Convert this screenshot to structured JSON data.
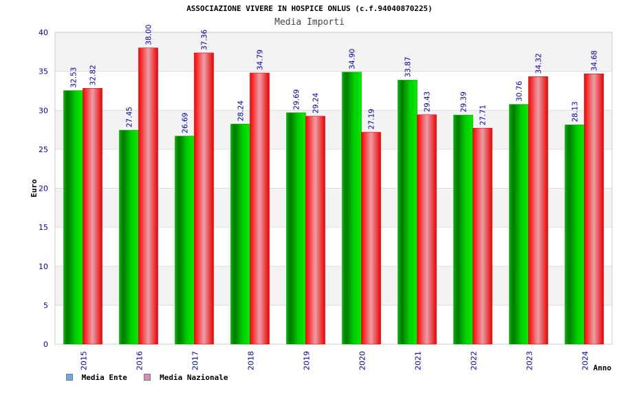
{
  "title": "ASSOCIAZIONE VIVERE IN HOSPICE ONLUS (c.f.94040870225)",
  "subtitle": "Media Importi",
  "colors": {
    "ente": "#00bb00",
    "nazionale": "#ee1122",
    "legend_ente": "#66aaee",
    "legend_nazionale": "#dd88bb",
    "tick_text": "#0000aa",
    "grid_band": "#f3f3f3"
  },
  "chart_data": {
    "type": "bar",
    "categories": [
      "2015",
      "2016",
      "2017",
      "2018",
      "2019",
      "2020",
      "2021",
      "2022",
      "2023",
      "2024"
    ],
    "series": [
      {
        "name": "Media Ente",
        "values": [
          32.53,
          27.45,
          26.69,
          28.24,
          29.69,
          34.9,
          33.87,
          29.39,
          30.76,
          28.13
        ]
      },
      {
        "name": "Media Nazionale",
        "values": [
          32.82,
          38.0,
          37.36,
          34.79,
          29.24,
          27.19,
          29.43,
          27.71,
          34.32,
          34.68
        ]
      }
    ],
    "labels": [
      [
        "32.53",
        "27.45",
        "26.69",
        "28.24",
        "29.69",
        "34.90",
        "33.87",
        "29.39",
        "30.76",
        "28.13"
      ],
      [
        "32.82",
        "38.00",
        "37.36",
        "34.79",
        "29.24",
        "27.19",
        "29.43",
        "27.71",
        "34.32",
        "34.68"
      ]
    ],
    "xlabel": "Anno",
    "ylabel": "Euro",
    "ylim": [
      0,
      40
    ],
    "yticks": [
      0,
      5,
      10,
      15,
      20,
      25,
      30,
      35,
      40
    ],
    "legend_position": "bottom-left",
    "grid": true
  }
}
